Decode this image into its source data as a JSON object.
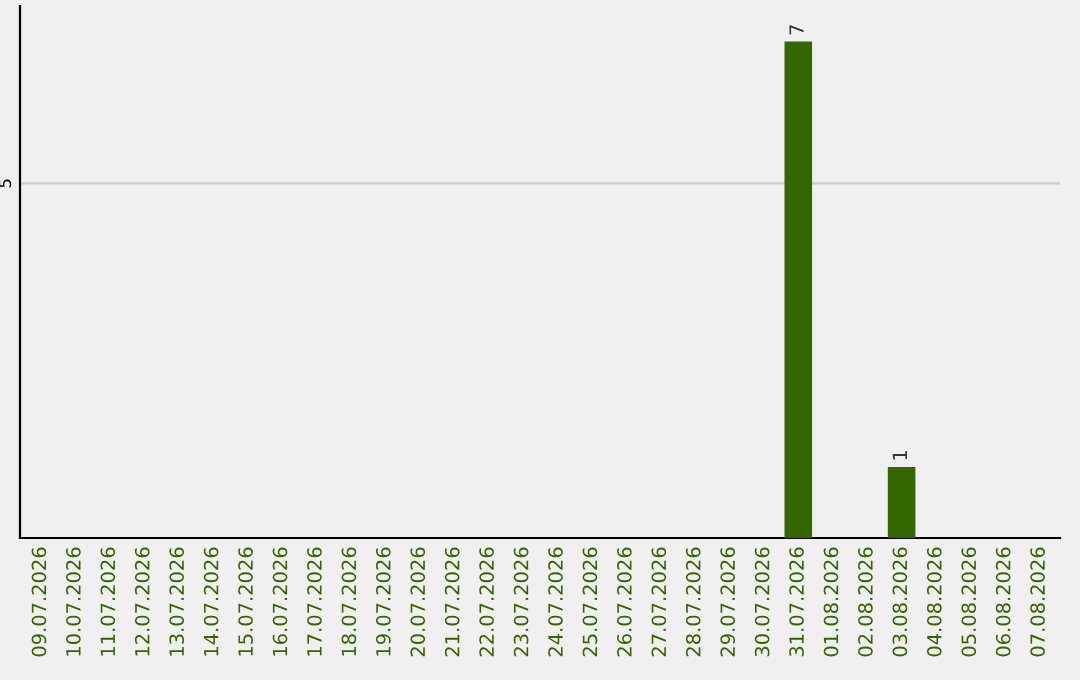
{
  "chart_data": {
    "type": "bar",
    "categories": [
      "09.07.2026",
      "10.07.2026",
      "11.07.2026",
      "12.07.2026",
      "13.07.2026",
      "14.07.2026",
      "15.07.2026",
      "16.07.2026",
      "17.07.2026",
      "18.07.2026",
      "19.07.2026",
      "20.07.2026",
      "21.07.2026",
      "22.07.2026",
      "23.07.2026",
      "24.07.2026",
      "25.07.2026",
      "26.07.2026",
      "27.07.2026",
      "28.07.2026",
      "29.07.2026",
      "30.07.2026",
      "31.07.2026",
      "01.08.2026",
      "02.08.2026",
      "03.08.2026",
      "04.08.2026",
      "05.08.2026",
      "06.08.2026",
      "07.08.2026"
    ],
    "values": [
      null,
      null,
      null,
      null,
      null,
      null,
      null,
      null,
      null,
      null,
      null,
      null,
      null,
      null,
      null,
      null,
      null,
      null,
      null,
      null,
      null,
      null,
      7,
      null,
      null,
      1,
      null,
      null,
      null,
      null
    ],
    "data_labels": true,
    "color": "#336600",
    "ylim": [
      0,
      7.5
    ],
    "ref_lines": [
      {
        "axis": "y",
        "value": 5,
        "label": "5",
        "color": "#cccccc"
      }
    ]
  }
}
